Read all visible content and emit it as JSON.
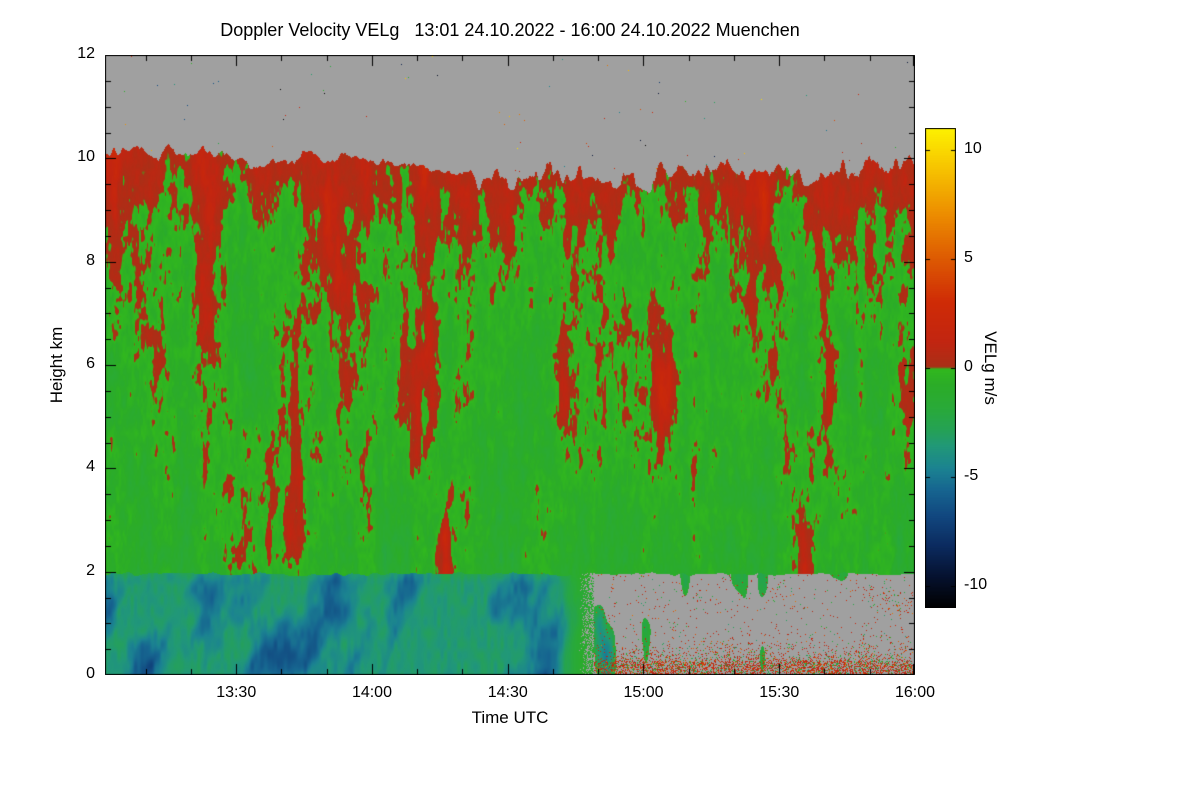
{
  "chart_data": {
    "type": "heatmap",
    "title": "Doppler Velocity VELg   13:01 24.10.2022 - 16:00 24.10.2022 Muenchen",
    "xlabel": "Time UTC",
    "ylabel": "Height km",
    "x_start_label": "13:01",
    "x_end_label": "16:00",
    "x_total_minutes": 179,
    "x_ticks": [
      "13:30",
      "14:00",
      "14:30",
      "15:00",
      "15:30",
      "16:00"
    ],
    "x_tick_minutes": [
      29,
      59,
      89,
      119,
      149,
      179
    ],
    "y_ticks": [
      "0",
      "2",
      "4",
      "6",
      "8",
      "10",
      "12"
    ],
    "y_tick_values": [
      0,
      2,
      4,
      6,
      8,
      10,
      12
    ],
    "ylim": [
      0,
      12
    ],
    "grid_lines": "off",
    "legend": "colorbar-right",
    "colorbar": {
      "label": "VELg m/s",
      "ticks": [
        "10",
        "5",
        "0",
        "-5",
        "-10"
      ],
      "tick_values": [
        10,
        5,
        0,
        -5,
        -10
      ],
      "vmin": -11,
      "vmax": 11,
      "no_data_color": "#a0a0a0",
      "stops": [
        {
          "v": -11,
          "c": "#000000"
        },
        {
          "v": -9.6,
          "c": "#05112e"
        },
        {
          "v": -8.2,
          "c": "#0b2a5e"
        },
        {
          "v": -6.8,
          "c": "#11477f"
        },
        {
          "v": -5.6,
          "c": "#166590"
        },
        {
          "v": -4.6,
          "c": "#1b8391"
        },
        {
          "v": -3.6,
          "c": "#219878"
        },
        {
          "v": -2.8,
          "c": "#25a254"
        },
        {
          "v": -1.8,
          "c": "#29aa38"
        },
        {
          "v": -0.8,
          "c": "#2bac28"
        },
        {
          "v": -0.05,
          "c": "#31b81e"
        },
        {
          "v": 0.05,
          "c": "#aa2f17"
        },
        {
          "v": 1.2,
          "c": "#c22511"
        },
        {
          "v": 3.0,
          "c": "#cf2b06"
        },
        {
          "v": 5.0,
          "c": "#dd5a02"
        },
        {
          "v": 7.0,
          "c": "#ec8c00"
        },
        {
          "v": 9.0,
          "c": "#f6c000"
        },
        {
          "v": 11,
          "c": "#fdf200"
        }
      ]
    },
    "features": {
      "description": "Time-height Doppler velocity curtain from cloud radar; gray = no data / clear air above cloud top and below cloud base after rain ends",
      "cloud_top_km_profile": [
        10.15,
        10.1,
        10.05,
        9.95,
        10.0,
        9.9,
        9.75,
        9.65,
        9.75,
        9.6,
        9.65,
        9.75,
        9.7,
        9.8,
        9.9
      ],
      "cloud_base_km": 2.0,
      "cloud_mean_velocity_ms": -0.5,
      "updraft_streak_velocity_ms": 2,
      "rain_layer": {
        "top_km": 2.0,
        "bottom_km": 0.0,
        "end_minute": 108,
        "end_time": "14:49",
        "mean_velocity_ms": -4.2,
        "fall_streak_velocity_ms": -7
      },
      "post_rain": {
        "from_time": "14:49",
        "description": "mostly no-data gray below 2 km with positive-velocity clutter speckles (+0.5 to +4 m/s) densest below 1 km, plus sparse teal wisps"
      }
    },
    "grid": {
      "x_bins": [
        "13:01-13:15",
        "13:15-13:30",
        "13:30-13:45",
        "13:45-14:00",
        "14:00-14:15",
        "14:15-14:30",
        "14:30-14:45",
        "14:45-15:00",
        "15:00-15:15",
        "15:15-15:30",
        "15:30-15:45",
        "15:45-16:00"
      ],
      "y_bin_centers_km": [
        11.5,
        10.5,
        9.5,
        8.5,
        7.5,
        6.5,
        5.5,
        4.5,
        3.5,
        2.5,
        1.5,
        0.5
      ],
      "values_ms": [
        [
          null,
          null,
          null,
          null,
          null,
          null,
          null,
          null,
          null,
          null,
          null,
          null
        ],
        [
          null,
          null,
          null,
          null,
          null,
          null,
          null,
          null,
          null,
          null,
          null,
          null
        ],
        [
          -0.5,
          -0.4,
          -0.6,
          -0.5,
          -0.3,
          0.2,
          -0.2,
          null,
          -0.4,
          0.1,
          -0.3,
          -0.4
        ],
        [
          -0.3,
          0.3,
          -0.5,
          -0.2,
          -0.6,
          -0.4,
          0.5,
          -0.3,
          -0.5,
          0.2,
          -0.4,
          -0.6
        ],
        [
          -0.6,
          -0.2,
          -0.7,
          -0.4,
          -0.5,
          0.8,
          -0.3,
          -0.6,
          -0.2,
          -0.5,
          0.3,
          -0.5
        ],
        [
          -0.8,
          -0.5,
          -0.3,
          -0.7,
          -0.4,
          -0.6,
          1.0,
          -0.5,
          -0.7,
          -0.3,
          -0.6,
          -0.4
        ],
        [
          -0.7,
          -0.6,
          -0.8,
          -0.5,
          -0.9,
          -0.4,
          -0.6,
          -0.8,
          -0.5,
          -0.7,
          -0.5,
          -0.8
        ],
        [
          -0.9,
          -0.7,
          -0.6,
          -0.8,
          -0.7,
          -0.9,
          -0.6,
          -0.7,
          -0.9,
          -0.6,
          -0.8,
          -0.7
        ],
        [
          -0.8,
          -0.9,
          -0.7,
          -0.8,
          -0.6,
          -0.8,
          -0.7,
          -0.9,
          -0.8,
          -0.7,
          -0.9,
          -0.8
        ],
        [
          -0.9,
          -0.8,
          -0.9,
          -0.7,
          -0.9,
          -0.8,
          -0.9,
          -0.8,
          -0.7,
          -0.9,
          -0.8,
          -0.9
        ],
        [
          -4.5,
          -5.5,
          -5.0,
          -6.0,
          -4.8,
          -5.2,
          -4.0,
          null,
          -2.5,
          null,
          null,
          -1.0
        ],
        [
          -4.0,
          -5.0,
          -5.5,
          -5.8,
          -4.5,
          -4.8,
          -3.5,
          0.8,
          1.2,
          1.0,
          1.5,
          1.2
        ]
      ]
    }
  }
}
